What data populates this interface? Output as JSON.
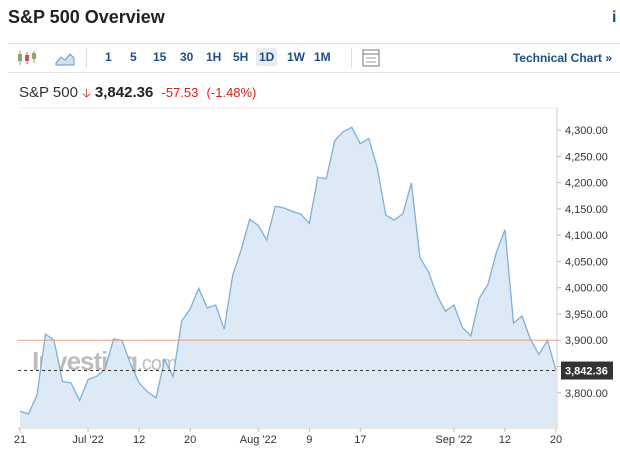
{
  "header": {
    "title": "S&P 500 Overview",
    "info": "i"
  },
  "toolbar": {
    "intervals": [
      "1",
      "5",
      "15",
      "30",
      "1H",
      "5H",
      "1D",
      "1W",
      "1M"
    ],
    "active": "1D",
    "link": "Technical Chart »"
  },
  "quote": {
    "name": "S&P 500",
    "price": "3,842.36",
    "change": "-57.53",
    "change_pct": "(-1.48%)"
  },
  "watermark": {
    "brand": "Investing",
    "suffix": ".com"
  },
  "chart_data": {
    "type": "area",
    "categories": [
      "21",
      null,
      null,
      null,
      null,
      null,
      null,
      null,
      "Jul '22",
      null,
      null,
      null,
      null,
      null,
      "12",
      null,
      null,
      null,
      null,
      null,
      "20",
      null,
      null,
      null,
      null,
      null,
      null,
      null,
      "Aug '22",
      null,
      null,
      null,
      null,
      null,
      "9",
      null,
      null,
      null,
      null,
      null,
      "17",
      null,
      null,
      null,
      null,
      null,
      null,
      null,
      null,
      null,
      null,
      "Sep '22",
      null,
      null,
      null,
      null,
      null,
      "12",
      null,
      null,
      null,
      null,
      null,
      "20"
    ],
    "values": [
      3764.79,
      3759.89,
      3795.73,
      3911.74,
      3900.11,
      3821.55,
      3818.83,
      3785.38,
      3825.33,
      3831.39,
      3845.08,
      3902.62,
      3899.38,
      3854.43,
      3818.8,
      3801.78,
      3790.38,
      3863.16,
      3830.85,
      3936.69,
      3959.9,
      3998.95,
      3961.63,
      3966.84,
      3921.05,
      4023.61,
      4072.43,
      4130.29,
      4118.63,
      4091.19,
      4155.17,
      4151.94,
      4145.19,
      4140.06,
      4122.47,
      4210.24,
      4207.27,
      4280.15,
      4297.14,
      4305.2,
      4274.04,
      4283.74,
      4228.48,
      4137.99,
      4128.73,
      4140.77,
      4199.12,
      4057.66,
      4030.61,
      3986.16,
      3955.0,
      3966.85,
      3924.26,
      3908.19,
      3979.87,
      4006.18,
      4067.36,
      4110.41,
      3932.69,
      3946.01,
      3901.35,
      3873.33,
      3899.89,
      3842.36
    ],
    "color": "#7fb0d9",
    "fill": "#dde9f4",
    "reference_line": 3899.89,
    "reference_color": "#e8a08a",
    "ylim": [
      3733,
      4342
    ],
    "yticks": [
      {
        "value": 3800,
        "label": "3,800.00"
      },
      {
        "value": 3850,
        "label": "3,850.00"
      },
      {
        "value": 3900,
        "label": "3,900.00"
      },
      {
        "value": 3950,
        "label": "3,950.00"
      },
      {
        "value": 4000,
        "label": "4,000.00"
      },
      {
        "value": 4050,
        "label": "4,050.00"
      },
      {
        "value": 4100,
        "label": "4,100.00"
      },
      {
        "value": 4150,
        "label": "4,150.00"
      },
      {
        "value": 4200,
        "label": "4,200.00"
      },
      {
        "value": 4250,
        "label": "4,250.00"
      },
      {
        "value": 4300,
        "label": "4,300.00"
      }
    ],
    "grid": false
  }
}
